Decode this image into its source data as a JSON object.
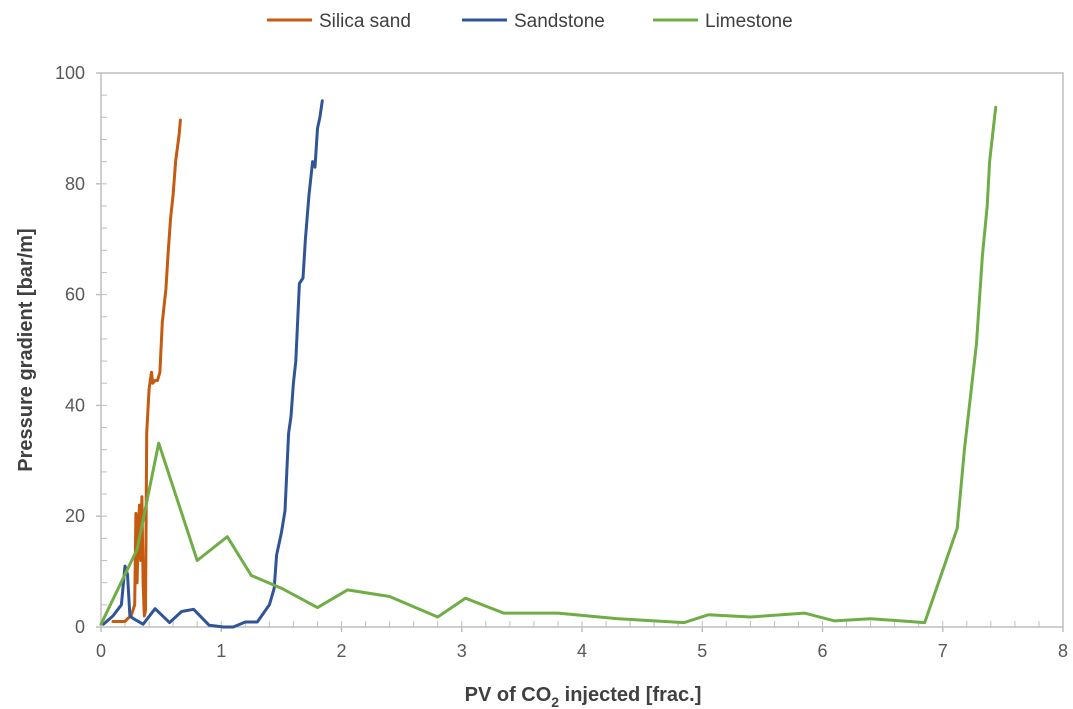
{
  "chart_data": {
    "type": "line",
    "xlabel_main": "PV of CO",
    "xlabel_sub": "2",
    "xlabel_tail": " injected [frac.]",
    "ylabel": "Pressure gradient [bar/m]",
    "xlim": [
      0,
      8
    ],
    "ylim": [
      0,
      100
    ],
    "xticks": [
      0,
      1,
      2,
      3,
      4,
      5,
      6,
      7,
      8
    ],
    "yticks": [
      0,
      20,
      40,
      60,
      80,
      100
    ],
    "grid": false,
    "legend_position": "top",
    "series": [
      {
        "name": "Silica sand",
        "color": "#C55A11",
        "points": [
          [
            0.1,
            1
          ],
          [
            0.2,
            1
          ],
          [
            0.22,
            1.5
          ],
          [
            0.25,
            2
          ],
          [
            0.28,
            4
          ],
          [
            0.29,
            20.5
          ],
          [
            0.3,
            8
          ],
          [
            0.31,
            18
          ],
          [
            0.32,
            22
          ],
          [
            0.33,
            12
          ],
          [
            0.34,
            23.5
          ],
          [
            0.35,
            8
          ],
          [
            0.36,
            2
          ],
          [
            0.37,
            3
          ],
          [
            0.38,
            35
          ],
          [
            0.4,
            43
          ],
          [
            0.42,
            46
          ],
          [
            0.43,
            44
          ],
          [
            0.45,
            44.5
          ],
          [
            0.47,
            44.5
          ],
          [
            0.49,
            46
          ],
          [
            0.51,
            55
          ],
          [
            0.54,
            61
          ],
          [
            0.56,
            68
          ],
          [
            0.58,
            74
          ],
          [
            0.6,
            78
          ],
          [
            0.62,
            84
          ],
          [
            0.65,
            89
          ],
          [
            0.66,
            91.5
          ]
        ]
      },
      {
        "name": "Sandstone",
        "color": "#2F5597",
        "points": [
          [
            0.02,
            0.5
          ],
          [
            0.1,
            2
          ],
          [
            0.17,
            4
          ],
          [
            0.2,
            11
          ],
          [
            0.22,
            9.5
          ],
          [
            0.24,
            2
          ],
          [
            0.27,
            1.5
          ],
          [
            0.35,
            0.5
          ],
          [
            0.45,
            3.3
          ],
          [
            0.57,
            0.8
          ],
          [
            0.67,
            2.8
          ],
          [
            0.77,
            3.2
          ],
          [
            0.9,
            0.3
          ],
          [
            1.02,
            0
          ],
          [
            1.1,
            0
          ],
          [
            1.2,
            0.9
          ],
          [
            1.3,
            0.9
          ],
          [
            1.4,
            4
          ],
          [
            1.44,
            7
          ],
          [
            1.46,
            13
          ],
          [
            1.5,
            17
          ],
          [
            1.53,
            21
          ],
          [
            1.56,
            35
          ],
          [
            1.58,
            38
          ],
          [
            1.6,
            44
          ],
          [
            1.62,
            48
          ],
          [
            1.65,
            62
          ],
          [
            1.68,
            63
          ],
          [
            1.7,
            70
          ],
          [
            1.73,
            78
          ],
          [
            1.76,
            84
          ],
          [
            1.78,
            83
          ],
          [
            1.8,
            90
          ],
          [
            1.82,
            92
          ],
          [
            1.84,
            95
          ]
        ]
      },
      {
        "name": "Limestone",
        "color": "#70AD47",
        "points": [
          [
            0,
            0.5
          ],
          [
            0.3,
            14
          ],
          [
            0.48,
            33.2
          ],
          [
            0.8,
            12
          ],
          [
            1.05,
            16.3
          ],
          [
            1.25,
            9.3
          ],
          [
            1.5,
            7
          ],
          [
            1.8,
            3.5
          ],
          [
            2.05,
            6.7
          ],
          [
            2.4,
            5.5
          ],
          [
            2.8,
            1.8
          ],
          [
            3.03,
            5.2
          ],
          [
            3.35,
            2.5
          ],
          [
            3.8,
            2.5
          ],
          [
            4.3,
            1.5
          ],
          [
            4.85,
            0.8
          ],
          [
            5.05,
            2.2
          ],
          [
            5.4,
            1.8
          ],
          [
            5.85,
            2.5
          ],
          [
            6.1,
            1.1
          ],
          [
            6.4,
            1.5
          ],
          [
            6.85,
            0.8
          ],
          [
            7.12,
            17.8
          ],
          [
            7.18,
            32
          ],
          [
            7.28,
            51
          ],
          [
            7.33,
            67
          ],
          [
            7.37,
            76
          ],
          [
            7.39,
            84
          ],
          [
            7.44,
            93.8
          ]
        ]
      }
    ]
  }
}
